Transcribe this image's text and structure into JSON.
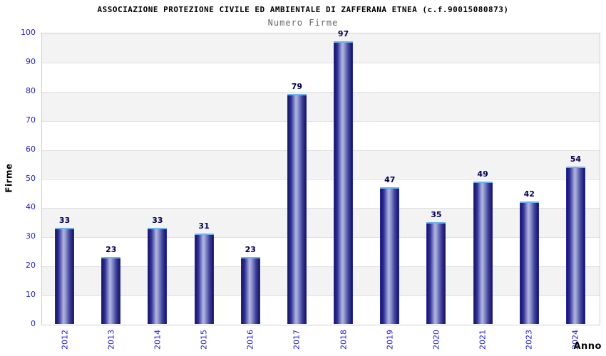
{
  "chart_data": {
    "type": "bar",
    "title": "ASSOCIAZIONE PROTEZIONE CIVILE ED AMBIENTALE DI ZAFFERANA ETNEA (c.f.90015080873)",
    "subtitle": "Numero Firme",
    "xlabel": "Anno",
    "ylabel": "Firme",
    "categories": [
      "2012",
      "2013",
      "2014",
      "2015",
      "2016",
      "2017",
      "2018",
      "2019",
      "2020",
      "2021",
      "2023",
      "2024"
    ],
    "values": [
      33,
      23,
      33,
      31,
      23,
      79,
      97,
      47,
      35,
      49,
      42,
      54
    ],
    "ylim": [
      0,
      100
    ],
    "ytick_step": 10,
    "legend": "none",
    "grid": "horizontal-bands-alternating",
    "colors": {
      "bar_dark": "#191964",
      "bar_light": "#b2b6e0",
      "bar_edge": "#2b2bb4",
      "bar_top": "#6cb2f0",
      "tick_label": "#2323cc",
      "value_label": "#000050",
      "band_gray": "#f3f3f3",
      "band_white": "#ffffff",
      "gridline": "#e0e0e0",
      "plot_border": "#cfcfcf",
      "title_color": "#000000",
      "subtitle_color": "#666666"
    }
  }
}
